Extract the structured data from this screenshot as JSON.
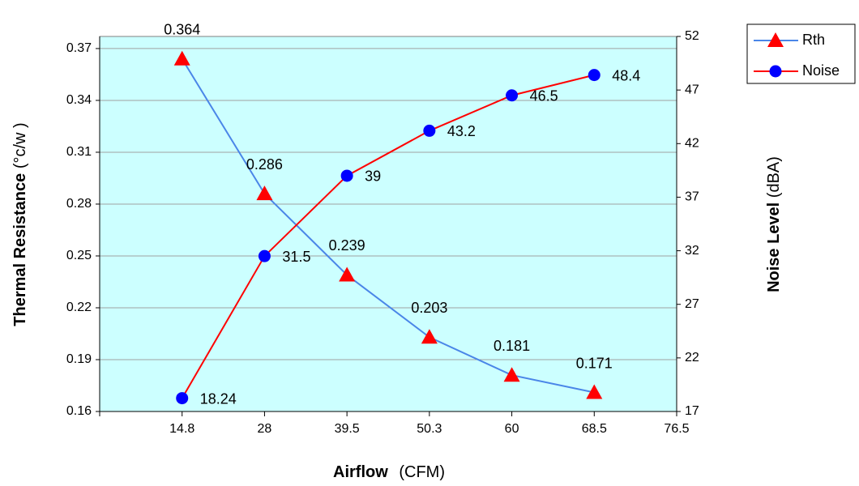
{
  "chart_data": {
    "type": "line",
    "x_label": "Airflow",
    "x_label_unit": "(CFM)",
    "y_label": "Thermal Resistance",
    "y_label_unit": "(°c/w )",
    "y2_label": "Noise Level",
    "y2_label_unit": "(dBA)",
    "categories": [
      "14.8",
      "28",
      "39.5",
      "50.3",
      "60",
      "68.5",
      "76.5"
    ],
    "series": [
      {
        "name": "Rth",
        "color": "#4a86e8",
        "marker": "triangle",
        "marker_color": "#ff0000",
        "values": [
          0.364,
          0.286,
          0.239,
          0.203,
          0.181,
          0.171,
          null
        ]
      },
      {
        "name": "Noise",
        "color": "#ff0000",
        "marker": "circle",
        "marker_color": "#0000ff",
        "axis": "y2",
        "values": [
          18.24,
          31.5,
          39,
          43.2,
          46.5,
          48.4,
          null
        ]
      }
    ],
    "ylim": [
      0.16,
      0.377
    ],
    "yticks": [
      0.16,
      0.19,
      0.22,
      0.25,
      0.28,
      0.31,
      0.34,
      0.37
    ],
    "y2lim": [
      17,
      52
    ],
    "y2ticks": [
      17,
      22,
      27,
      32,
      37,
      42,
      47,
      52
    ],
    "grid": true,
    "plot_background": "#ccffff",
    "legend": "top-right"
  }
}
